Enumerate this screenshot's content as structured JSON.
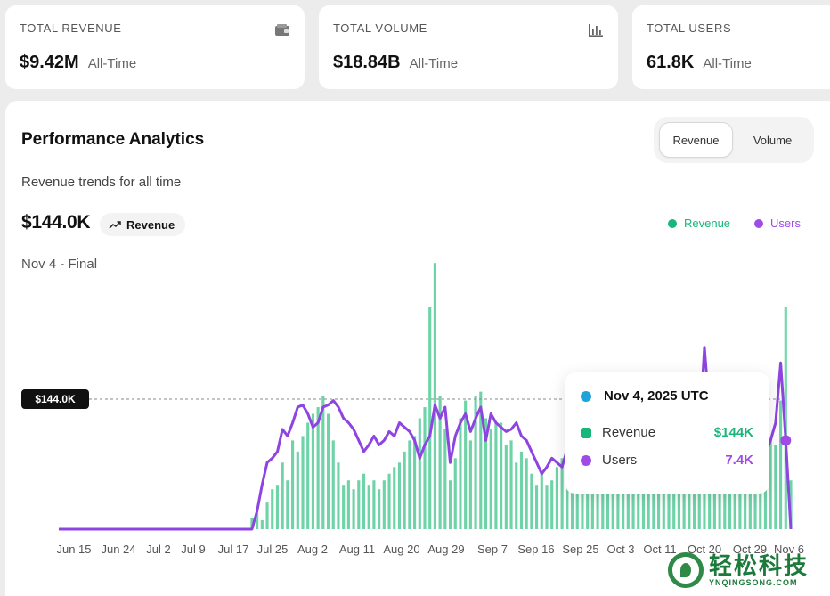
{
  "stats": [
    {
      "label": "TOTAL REVENUE",
      "value": "$9.42M",
      "sub": "All-Time",
      "icon": "wallet-icon"
    },
    {
      "label": "TOTAL VOLUME",
      "value": "$18.84B",
      "sub": "All-Time",
      "icon": "bar-chart-icon"
    },
    {
      "label": "TOTAL USERS",
      "value": "61.8K",
      "sub": "All-Time",
      "icon": "none"
    }
  ],
  "panel": {
    "title": "Performance Analytics",
    "subtitle": "Revenue trends for all time",
    "big_value": "$144.0K",
    "trend_label": "Revenue",
    "date_caption": "Nov 4 - Final",
    "toggle": {
      "revenue": "Revenue",
      "volume": "Volume",
      "active": "Revenue"
    }
  },
  "legend": {
    "revenue": "Revenue",
    "users": "Users",
    "revenue_color": "#19b67a",
    "users_color": "#a14be6"
  },
  "reference_label": "$144.0K",
  "tooltip": {
    "date": "Nov 4, 2025 UTC",
    "revenue_label": "Revenue",
    "revenue_value": "$144K",
    "users_label": "Users",
    "users_value": "7.4K"
  },
  "watermark": {
    "main": "轻松科技",
    "sub": "YNQINGSONG.COM"
  },
  "chart_data": {
    "type": "bar",
    "xlabel": "",
    "ylabel": "",
    "x_tick_labels": [
      "Jun 15",
      "Jun 24",
      "Jul 2",
      "Jul 9",
      "Jul 17",
      "Jul 25",
      "Aug 2",
      "Aug 11",
      "Aug 20",
      "Aug 29",
      "Sep 7",
      "Sep 16",
      "Sep 25",
      "Oct 3",
      "Oct 11",
      "Oct 20",
      "Oct 29",
      "Nov 6"
    ],
    "series": [
      {
        "name": "Revenue",
        "type": "bar",
        "values": [
          0,
          0,
          0,
          0,
          0,
          0,
          0,
          0,
          0,
          0,
          0,
          0,
          0,
          0,
          0,
          0,
          0,
          0,
          0,
          0,
          0,
          0,
          0,
          0,
          0,
          0,
          0,
          0,
          0,
          0,
          0,
          0,
          0,
          0,
          0,
          0,
          0,
          0,
          5,
          7,
          4,
          12,
          18,
          20,
          30,
          22,
          40,
          35,
          42,
          48,
          52,
          55,
          60,
          52,
          40,
          30,
          20,
          22,
          18,
          22,
          25,
          20,
          22,
          18,
          22,
          25,
          28,
          30,
          35,
          40,
          42,
          50,
          55,
          100,
          120,
          60,
          45,
          22,
          32,
          50,
          58,
          40,
          60,
          62,
          50,
          45,
          48,
          48,
          38,
          40,
          30,
          35,
          32,
          25,
          20,
          25,
          20,
          22,
          28,
          32,
          30,
          28,
          26,
          28,
          30,
          38,
          40,
          28,
          26,
          24,
          20,
          18,
          16,
          18,
          20,
          22,
          20,
          22,
          24,
          26,
          20,
          22,
          22,
          24,
          24,
          26,
          25,
          25,
          28,
          30,
          32,
          35,
          30,
          30,
          28,
          32,
          32,
          36,
          38,
          60,
          40,
          38,
          58,
          100,
          22
        ]
      },
      {
        "name": "Users",
        "type": "line",
        "values": [
          0,
          0,
          0,
          0,
          0,
          0,
          0,
          0,
          0,
          0,
          0,
          0,
          0,
          0,
          0,
          0,
          0,
          0,
          0,
          0,
          0,
          0,
          0,
          0,
          0,
          0,
          0,
          0,
          0,
          0,
          0,
          0,
          0,
          0,
          0,
          0,
          0,
          0,
          0,
          8,
          20,
          30,
          32,
          35,
          45,
          42,
          48,
          55,
          56,
          52,
          46,
          48,
          55,
          56,
          58,
          55,
          50,
          48,
          45,
          40,
          35,
          38,
          42,
          38,
          40,
          44,
          42,
          48,
          46,
          44,
          40,
          32,
          38,
          42,
          56,
          50,
          55,
          30,
          42,
          48,
          52,
          44,
          50,
          55,
          40,
          52,
          48,
          46,
          44,
          45,
          48,
          42,
          40,
          35,
          30,
          25,
          28,
          32,
          30,
          28,
          36,
          40,
          38,
          42,
          38,
          36,
          30,
          32,
          38,
          30,
          28,
          30,
          34,
          26,
          22,
          28,
          30,
          26,
          24,
          22,
          26,
          30,
          28,
          32,
          30,
          34,
          42,
          82,
          52,
          46,
          36,
          30,
          28,
          24,
          22,
          25,
          28,
          30,
          32,
          34,
          40,
          48,
          75,
          40,
          0
        ]
      }
    ],
    "reference_line": {
      "value": 144.0,
      "label": "$144.0K"
    },
    "highlight": {
      "date": "Nov 4, 2025 UTC",
      "revenue": "$144K",
      "users": "7.4K"
    },
    "grid": false,
    "legend_position": "top-right"
  }
}
